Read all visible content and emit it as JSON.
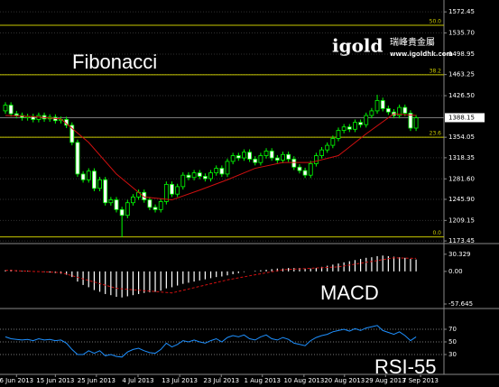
{
  "chart_data": [
    {
      "type": "candlestick",
      "title": "Fibonacci",
      "color": "#00ff00",
      "open": [
        1400,
        1410,
        1395,
        1392,
        1388,
        1390,
        1385,
        1392,
        1386,
        1389,
        1383,
        1385,
        1375,
        1345,
        1290,
        1280,
        1295,
        1265,
        1280,
        1240,
        1245,
        1228,
        1218,
        1240,
        1250,
        1258,
        1245,
        1232,
        1228,
        1242,
        1272,
        1255,
        1268,
        1288,
        1284,
        1292,
        1286,
        1282,
        1292,
        1300,
        1290,
        1312,
        1322,
        1318,
        1328,
        1316,
        1310,
        1322,
        1330,
        1318,
        1314,
        1324,
        1316,
        1302,
        1296,
        1288,
        1308,
        1322,
        1332,
        1340,
        1352,
        1366,
        1372,
        1368,
        1380,
        1376,
        1392,
        1400,
        1418,
        1404,
        1398,
        1392,
        1406,
        1396,
        1370
      ],
      "high": [
        1415,
        1415,
        1400,
        1397,
        1395,
        1395,
        1397,
        1397,
        1394,
        1394,
        1390,
        1390,
        1380,
        1350,
        1295,
        1300,
        1300,
        1285,
        1285,
        1250,
        1250,
        1233,
        1245,
        1255,
        1263,
        1263,
        1250,
        1237,
        1247,
        1277,
        1277,
        1273,
        1293,
        1293,
        1297,
        1297,
        1291,
        1297,
        1305,
        1305,
        1317,
        1327,
        1327,
        1333,
        1333,
        1321,
        1327,
        1335,
        1335,
        1323,
        1329,
        1329,
        1321,
        1307,
        1301,
        1313,
        1327,
        1337,
        1345,
        1357,
        1371,
        1377,
        1377,
        1385,
        1385,
        1397,
        1405,
        1428,
        1423,
        1409,
        1403,
        1411,
        1411,
        1401,
        1393
      ],
      "low": [
        1395,
        1390,
        1387,
        1383,
        1383,
        1380,
        1380,
        1381,
        1381,
        1378,
        1378,
        1370,
        1340,
        1285,
        1275,
        1275,
        1260,
        1260,
        1235,
        1235,
        1223,
        1180,
        1213,
        1235,
        1245,
        1240,
        1227,
        1223,
        1223,
        1237,
        1250,
        1250,
        1263,
        1279,
        1279,
        1281,
        1277,
        1277,
        1287,
        1285,
        1285,
        1307,
        1313,
        1313,
        1311,
        1305,
        1305,
        1317,
        1313,
        1309,
        1309,
        1311,
        1297,
        1291,
        1283,
        1283,
        1303,
        1317,
        1327,
        1335,
        1347,
        1361,
        1363,
        1363,
        1371,
        1371,
        1387,
        1395,
        1399,
        1393,
        1387,
        1387,
        1391,
        1365,
        1365
      ],
      "close": [
        1410,
        1395,
        1392,
        1388,
        1390,
        1385,
        1392,
        1386,
        1389,
        1383,
        1385,
        1375,
        1345,
        1290,
        1280,
        1295,
        1265,
        1280,
        1240,
        1245,
        1228,
        1218,
        1240,
        1250,
        1258,
        1245,
        1232,
        1228,
        1242,
        1272,
        1255,
        1268,
        1288,
        1284,
        1292,
        1286,
        1282,
        1292,
        1300,
        1290,
        1312,
        1322,
        1318,
        1328,
        1316,
        1310,
        1322,
        1330,
        1318,
        1314,
        1324,
        1316,
        1302,
        1296,
        1288,
        1308,
        1322,
        1332,
        1340,
        1352,
        1366,
        1372,
        1368,
        1380,
        1376,
        1392,
        1400,
        1418,
        1404,
        1398,
        1392,
        1406,
        1396,
        1370,
        1388
      ],
      "ma": {
        "x": [
          0,
          5,
          10,
          15,
          20,
          25,
          30,
          35,
          40,
          45,
          50,
          55,
          60,
          65,
          70,
          74
        ],
        "values": [
          1392,
          1390,
          1386,
          1345,
          1290,
          1250,
          1245,
          1262,
          1280,
          1300,
          1310,
          1310,
          1322,
          1360,
          1395,
          1392
        ],
        "color": "#d01010"
      },
      "ylim": [
        1172,
        1590
      ],
      "yticks": [
        1572.45,
        {
          "value": 1535.7,
          "label": "1535.70"
        },
        1498.95,
        1463.25,
        {
          "value": 1426.5,
          "label": "1426.50"
        },
        1354.05,
        1318.35,
        {
          "value": 1281.6,
          "label": "1281.60"
        },
        {
          "value": 1245.9,
          "label": "1245.90"
        },
        1209.15,
        1173.45
      ],
      "current_price": 1388.15,
      "fib_levels": {
        "labels": [
          "0.0",
          "23.6",
          "38.2",
          "50.0"
        ],
        "prices": [
          1180.4,
          1354.0,
          1462.9,
          1549.2
        ],
        "color": "#c8c800"
      },
      "watermark": {
        "brand": "igold",
        "chinese": "瑞峰貴金屬",
        "url": "www.igoldhk.com"
      },
      "grid": true
    },
    {
      "type": "bar",
      "title": "MACD",
      "color": "#ffffff",
      "values": [
        2,
        3,
        2,
        1,
        1,
        0,
        -1,
        -1,
        -2,
        -3,
        -4,
        -6,
        -10,
        -18,
        -24,
        -28,
        -33,
        -36,
        -40,
        -42,
        -45,
        -46,
        -44,
        -42,
        -40,
        -38,
        -37,
        -36,
        -34,
        -30,
        -28,
        -25,
        -22,
        -20,
        -18,
        -16,
        -14,
        -12,
        -10,
        -9,
        -7,
        -5,
        -3,
        -1,
        0,
        1,
        2,
        3,
        4,
        5,
        5,
        6,
        6,
        6,
        5,
        5,
        6,
        8,
        10,
        12,
        14,
        16,
        18,
        20,
        22,
        24,
        25,
        27,
        28,
        27,
        26,
        25,
        24,
        22,
        21
      ],
      "signal": {
        "x": [
          0,
          10,
          20,
          30,
          40,
          50,
          60,
          70,
          74
        ],
        "values": [
          2,
          -2,
          -30,
          -38,
          -15,
          3,
          8,
          24,
          23
        ],
        "color": "#d01010"
      },
      "ylim": [
        -64,
        46
      ],
      "yticks": [
        30.329,
        {
          "value": 0,
          "label": "0.00"
        },
        -57.645
      ]
    },
    {
      "type": "line",
      "title": "RSI-55",
      "color": "#1e90ff",
      "values": [
        58,
        55,
        54,
        53,
        54,
        52,
        55,
        53,
        54,
        52,
        53,
        48,
        38,
        30,
        30,
        36,
        32,
        36,
        28,
        30,
        27,
        26,
        34,
        38,
        40,
        36,
        33,
        32,
        38,
        48,
        42,
        46,
        52,
        50,
        53,
        50,
        48,
        52,
        55,
        50,
        57,
        60,
        58,
        61,
        55,
        53,
        58,
        61,
        55,
        53,
        57,
        54,
        48,
        46,
        44,
        52,
        57,
        60,
        62,
        66,
        68,
        70,
        67,
        71,
        68,
        72,
        74,
        76,
        68,
        65,
        62,
        66,
        60,
        52,
        58
      ],
      "ylim": [
        0,
        100
      ],
      "yticks": [
        30,
        50,
        70
      ],
      "xticks": [
        {
          "value": 2,
          "label": "6 Jun 2013"
        },
        {
          "value": 9,
          "label": "15 Jun 2013"
        },
        {
          "value": 16.4,
          "label": "25 Jun 2013"
        },
        {
          "value": 23.9,
          "label": "4 Jul 2013"
        },
        {
          "value": 31.4,
          "label": "13 Jul 2013"
        },
        {
          "value": 38.9,
          "label": "23 Jul 2013"
        },
        {
          "value": 46.3,
          "label": "1 Aug 2013"
        },
        {
          "value": 53.8,
          "label": "10 Aug 2013"
        },
        {
          "value": 61.1,
          "label": "20 Aug 2013"
        },
        {
          "value": 68.5,
          "label": "29 Aug 2013"
        },
        {
          "value": 74.8,
          "label": "7 Sep 2013"
        }
      ]
    }
  ]
}
